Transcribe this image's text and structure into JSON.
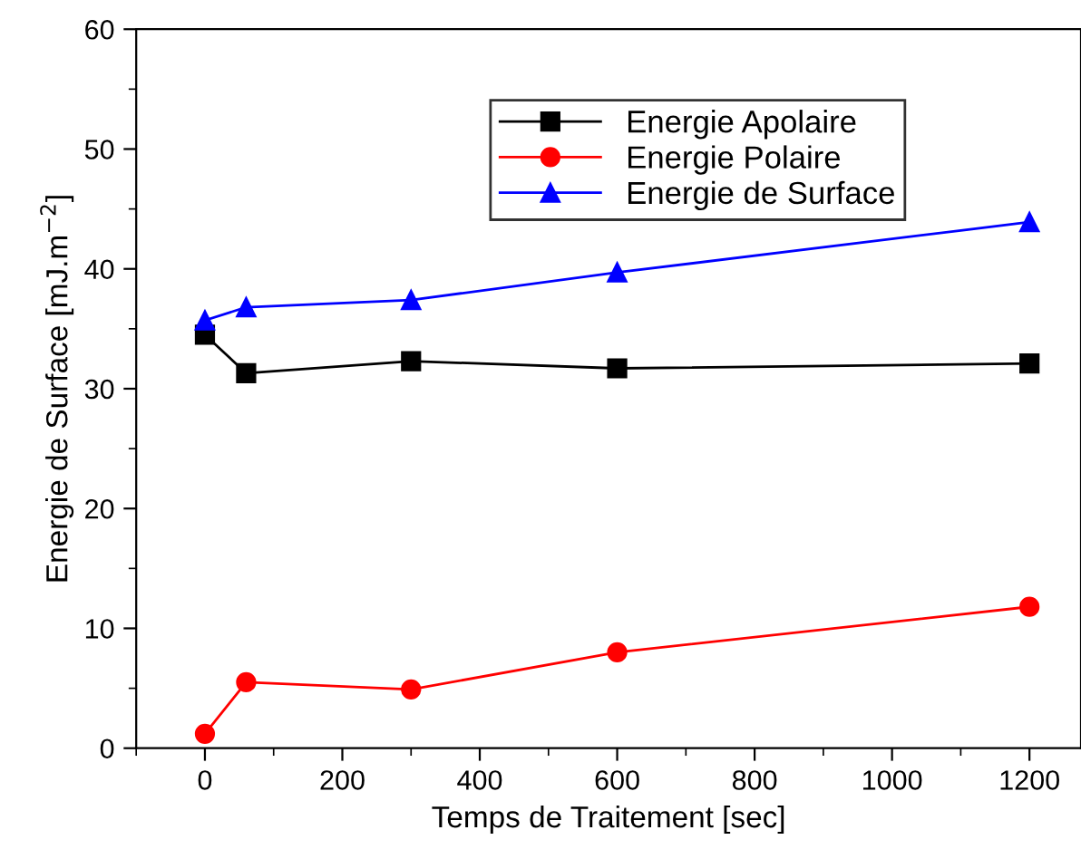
{
  "chart_data": {
    "type": "line",
    "xlabel": "Temps de Traitement [sec]",
    "ylabel": "Energie de Surface [mJ.m$^{−2}$]",
    "x": [
      0,
      60,
      300,
      600,
      1200
    ],
    "series": [
      {
        "name": "Energie Apolaire",
        "color": "#000000",
        "marker": "square",
        "values": [
          34.5,
          31.3,
          32.3,
          31.7,
          32.1
        ]
      },
      {
        "name": "Energie Polaire",
        "color": "#ff0000",
        "marker": "circle",
        "values": [
          1.2,
          5.5,
          4.9,
          8.0,
          11.8
        ]
      },
      {
        "name": "Energie de Surface",
        "color": "#0000ff",
        "marker": "triangle",
        "values": [
          35.7,
          36.8,
          37.4,
          39.7,
          43.9
        ]
      }
    ],
    "xlim": [
      -100,
      1275
    ],
    "xticks": [
      0,
      200,
      400,
      600,
      800,
      1000,
      1200
    ],
    "ylim": [
      0,
      60
    ],
    "yticks": [
      0,
      10,
      20,
      30,
      40,
      50,
      60
    ],
    "grid": false,
    "legend": "top right",
    "line_style": "solid"
  }
}
